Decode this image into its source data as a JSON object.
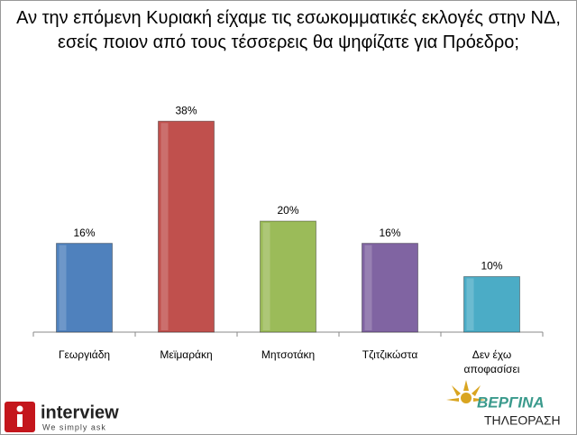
{
  "chart_data": {
    "type": "bar",
    "title": "Αν την επόμενη Κυριακή είχαμε τις εσωκομματικές εκλογές στην ΝΔ, εσείς ποιον από τους τέσσερεις θα ψηφίζατε για Πρόεδρο;",
    "categories": [
      "Γεωργιάδη",
      "Μεϊμαράκη",
      "Μητσοτάκη",
      "Τζιτζικώστα",
      "Δεν έχω αποφασίσει"
    ],
    "values": [
      16,
      38,
      20,
      16,
      10
    ],
    "value_labels": [
      "16%",
      "38%",
      "20%",
      "16%",
      "10%"
    ],
    "colors": [
      "#4f81bd",
      "#c0504d",
      "#9bbb59",
      "#8064a2",
      "#4bacc6"
    ],
    "annotations": [
      "interview",
      "We simply ask",
      "ΒΕΡΓΙΝΑ",
      "ΤΗΛΕΟΡΑΣΗ"
    ]
  }
}
